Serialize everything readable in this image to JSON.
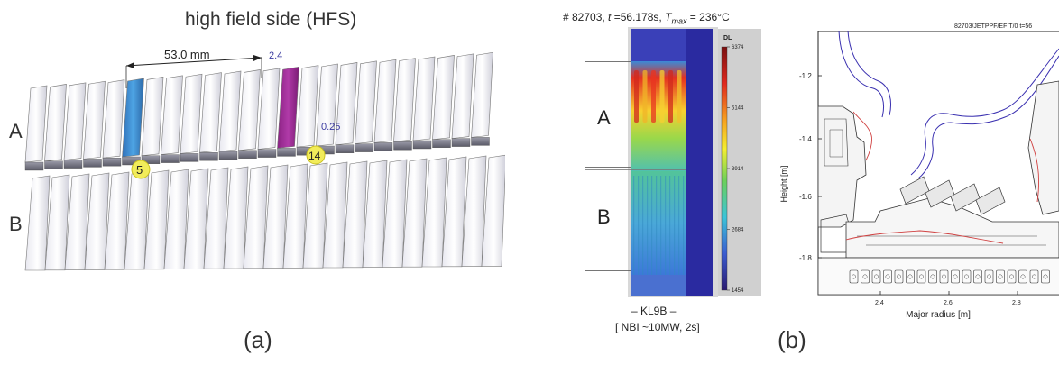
{
  "panel_a": {
    "title": "high field side (HFS)",
    "dimension": "53.0 mm",
    "val_top": "2.4",
    "val_side": "0.25",
    "marker_5": "5",
    "marker_14": "14",
    "row_a": "A",
    "row_b": "B",
    "caption": "(a)",
    "colors": {
      "tile_blue": "#3f8fd4",
      "tile_magenta": "#9a2a92",
      "marker": "#f2ec5a"
    }
  },
  "panel_ir": {
    "header_prefix": "# 82703, ",
    "header_t": "t",
    "header_t_val": " =56.178s, ",
    "header_tmax": "T",
    "header_tmax_sub": "max",
    "header_tmax_val": " = 236°C",
    "colorbar_label": "DL",
    "colorbar_ticks": [
      "6374",
      "5144",
      "3914",
      "2684",
      "1454"
    ],
    "row_a": "A",
    "row_b": "B",
    "footer_1": "– KL9B –",
    "footer_2": "[ NBI ~10MW, 2s]"
  },
  "panel_b": {
    "run_label": "82703/JETPPF/EFIT/0 t=56",
    "ylabel": "Height [m]",
    "xlabel": "Major radius [m]",
    "yticks": [
      "-1.2",
      "-1.4",
      "-1.6",
      "-1.8"
    ],
    "xticks": [
      "2.4",
      "2.6",
      "2.8"
    ],
    "caption": "(b)"
  }
}
